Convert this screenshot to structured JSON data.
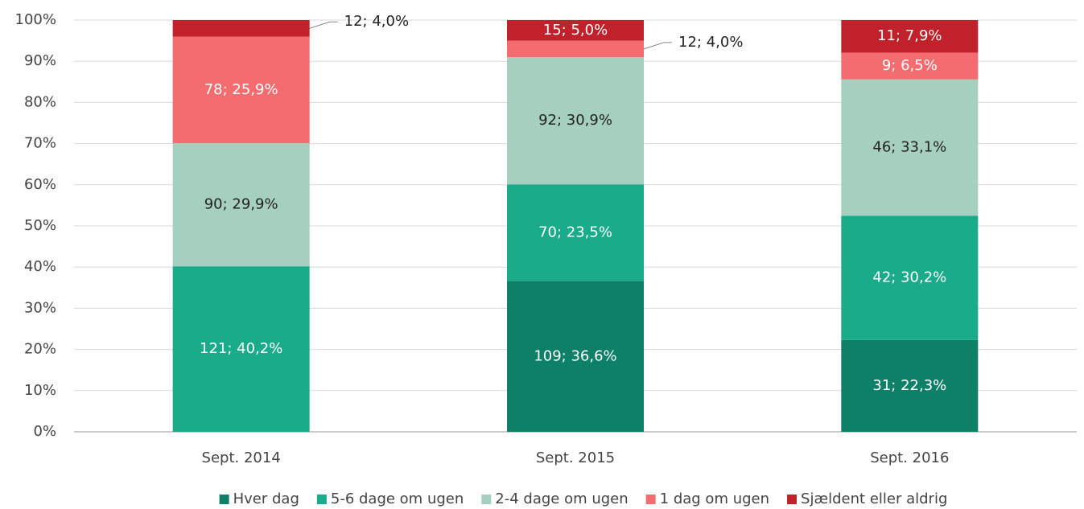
{
  "chart_data": {
    "type": "stacked-bar",
    "categories": [
      "Sept. 2014",
      "Sept. 2015",
      "Sept. 2016"
    ],
    "series": [
      {
        "name": "Hver dag",
        "color": "#0e8068",
        "values": [
          null,
          36.6,
          22.3
        ],
        "value_labels": [
          null,
          "109; 36,6%",
          "31; 22,3%"
        ]
      },
      {
        "name": "5-6 dage om ugen",
        "color": "#1aab8a",
        "values": [
          40.2,
          23.5,
          30.2
        ],
        "value_labels": [
          "121; 40,2%",
          "70; 23,5%",
          "42; 30,2%"
        ]
      },
      {
        "name": "2-4 dage om ugen",
        "color": "#a5d0c0",
        "values": [
          29.9,
          30.9,
          33.1
        ],
        "value_labels": [
          "90; 29,9%",
          "92; 30,9%",
          "46; 33,1%"
        ]
      },
      {
        "name": "1 dag om ugen",
        "color": "#f26c70",
        "values": [
          25.9,
          4.0,
          6.5
        ],
        "value_labels": [
          "78; 25,9%",
          "12; 4,0%",
          "9; 6,5%"
        ]
      },
      {
        "name": "Sjældent eller aldrig",
        "color": "#c0212a",
        "values": [
          4.0,
          5.0,
          7.9
        ],
        "value_labels": [
          "12; 4,0%",
          "15; 5,0%",
          "11; 7,9%"
        ]
      }
    ],
    "ylim": [
      0,
      100
    ],
    "yticks": [
      {
        "value": 0,
        "label": "0%"
      },
      {
        "value": 10,
        "label": "10%"
      },
      {
        "value": 20,
        "label": "20%"
      },
      {
        "value": 30,
        "label": "30%"
      },
      {
        "value": 40,
        "label": "40%"
      },
      {
        "value": 50,
        "label": "50%"
      },
      {
        "value": 60,
        "label": "60%"
      },
      {
        "value": 70,
        "label": "70%"
      },
      {
        "value": 80,
        "label": "80%"
      },
      {
        "value": 90,
        "label": "90%"
      },
      {
        "value": 100,
        "label": "100%"
      }
    ],
    "grid": true,
    "legend": "bottom"
  }
}
